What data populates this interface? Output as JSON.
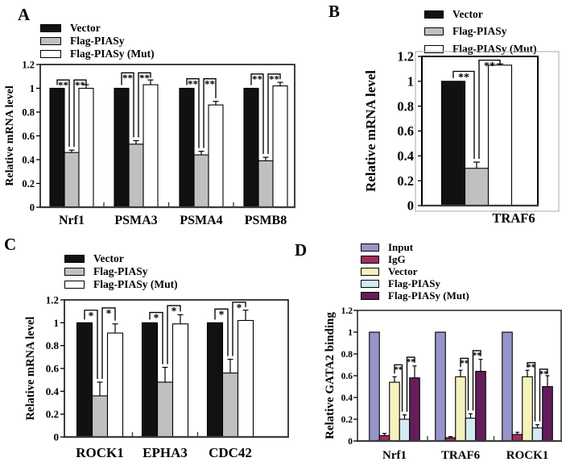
{
  "figure": {
    "background": "#ffffff",
    "accent_black": "#111111",
    "accent_gray": "#c0c0c0",
    "accent_white": "#ffffff"
  },
  "panels": [
    {
      "id": "A",
      "label": "A",
      "chart_data": {
        "type": "bar",
        "title": "",
        "xlabel": "",
        "ylabel": "Relative mRNA level",
        "ylim": [
          0,
          1.2
        ],
        "yticks": [
          0,
          0.2,
          0.4,
          0.6,
          0.8,
          1,
          1.2
        ],
        "ytick_labels": [
          "0",
          "0.2",
          "0.4",
          "0.6",
          "0.8",
          "1",
          "1.2"
        ],
        "grid": false,
        "legend_position": "top-left",
        "categories": [
          "Nrf1",
          "PSMA3",
          "PSMA4",
          "PSMB8"
        ],
        "series": [
          {
            "name": "Vector",
            "color": "#111111",
            "values": [
              1.0,
              1.0,
              1.0,
              1.0
            ],
            "errors": [
              0,
              0,
              0,
              0
            ]
          },
          {
            "name": "Flag-PIASy",
            "color": "#c0c0c0",
            "values": [
              0.46,
              0.53,
              0.44,
              0.39
            ],
            "errors": [
              0.02,
              0.03,
              0.03,
              0.03
            ]
          },
          {
            "name": "Flag-PIASy (Mut)",
            "color": "#ffffff",
            "values": [
              1.0,
              1.03,
              0.86,
              1.02
            ],
            "errors": [
              0.03,
              0.04,
              0.03,
              0.03
            ]
          }
        ],
        "significance": [
          {
            "cat": 0,
            "a": 0,
            "b": 1,
            "y": 1.07,
            "label": "**"
          },
          {
            "cat": 0,
            "a": 1,
            "b": 2,
            "y": 1.07,
            "label": "**"
          },
          {
            "cat": 1,
            "a": 0,
            "b": 1,
            "y": 1.13,
            "label": "**"
          },
          {
            "cat": 1,
            "a": 1,
            "b": 2,
            "y": 1.13,
            "label": "**"
          },
          {
            "cat": 2,
            "a": 0,
            "b": 1,
            "y": 1.08,
            "label": "**"
          },
          {
            "cat": 2,
            "a": 1,
            "b": 2,
            "y": 1.08,
            "label": "**"
          },
          {
            "cat": 3,
            "a": 0,
            "b": 1,
            "y": 1.12,
            "label": "**"
          },
          {
            "cat": 3,
            "a": 1,
            "b": 2,
            "y": 1.12,
            "label": "**"
          }
        ]
      }
    },
    {
      "id": "B",
      "label": "B",
      "chart_data": {
        "type": "bar",
        "title": "",
        "xlabel": "",
        "ylabel": "Relative mRNA level",
        "ylim": [
          0,
          1.2
        ],
        "yticks": [
          0,
          0.2,
          0.4,
          0.6,
          0.8,
          1,
          1.2
        ],
        "ytick_labels": [
          "0",
          "0.2",
          "0.4",
          "0.6",
          "0.8",
          "1",
          "1.2"
        ],
        "grid": false,
        "legend_position": "top-right",
        "categories": [
          "TRAF6"
        ],
        "series": [
          {
            "name": "Vector",
            "color": "#111111",
            "values": [
              1.0
            ],
            "errors": [
              0
            ]
          },
          {
            "name": "Flag-PIASy",
            "color": "#c0c0c0",
            "values": [
              0.3
            ],
            "errors": [
              0.05
            ]
          },
          {
            "name": "Flag-PIASy (Mut)",
            "color": "#ffffff",
            "values": [
              1.13
            ],
            "errors": [
              0.01
            ]
          }
        ],
        "significance": [
          {
            "cat": 0,
            "a": 0,
            "b": 1,
            "y": 1.08,
            "label": "**"
          },
          {
            "cat": 0,
            "a": 1,
            "b": 2,
            "y": 1.17,
            "label": "**"
          }
        ]
      }
    },
    {
      "id": "C",
      "label": "C",
      "chart_data": {
        "type": "bar",
        "title": "",
        "xlabel": "",
        "ylabel": "Relative mRNA level",
        "ylim": [
          0,
          1.2
        ],
        "yticks": [
          0,
          0.2,
          0.4,
          0.6,
          0.8,
          1,
          1.2
        ],
        "ytick_labels": [
          "0",
          "0.2",
          "0.4",
          "0.6",
          "0.8",
          "1",
          "1.2"
        ],
        "grid": false,
        "legend_position": "top-left",
        "categories": [
          "ROCK1",
          "EPHA3",
          "CDC42"
        ],
        "series": [
          {
            "name": "Vector",
            "color": "#111111",
            "values": [
              1.0,
              1.0,
              1.0
            ],
            "errors": [
              0,
              0,
              0
            ]
          },
          {
            "name": "Flag-PIASy",
            "color": "#c0c0c0",
            "values": [
              0.36,
              0.48,
              0.56
            ],
            "errors": [
              0.12,
              0.13,
              0.12
            ]
          },
          {
            "name": "Flag-PIASy (Mut)",
            "color": "#ffffff",
            "values": [
              0.91,
              0.99,
              1.02
            ],
            "errors": [
              0.08,
              0.08,
              0.09
            ]
          }
        ],
        "significance": [
          {
            "cat": 0,
            "a": 0,
            "b": 1,
            "y": 1.11,
            "label": "*"
          },
          {
            "cat": 0,
            "a": 1,
            "b": 2,
            "y": 1.13,
            "label": "*"
          },
          {
            "cat": 1,
            "a": 0,
            "b": 1,
            "y": 1.09,
            "label": "*"
          },
          {
            "cat": 1,
            "a": 1,
            "b": 2,
            "y": 1.15,
            "label": "*"
          },
          {
            "cat": 2,
            "a": 0,
            "b": 1,
            "y": 1.12,
            "label": "*"
          },
          {
            "cat": 2,
            "a": 1,
            "b": 2,
            "y": 1.18,
            "label": "*"
          }
        ]
      }
    },
    {
      "id": "D",
      "label": "D",
      "chart_data": {
        "type": "bar",
        "title": "",
        "xlabel": "",
        "ylabel": "Relative GATA2 binding",
        "ylim": [
          0,
          1.2
        ],
        "yticks": [
          0,
          0.2,
          0.4,
          0.6,
          0.8,
          1,
          1.2
        ],
        "ytick_labels": [
          "0",
          "0.2",
          "0.4",
          "0.6",
          "0.8",
          "1",
          "1.2"
        ],
        "grid": false,
        "legend_position": "top-left",
        "categories": [
          "Nrf1",
          "TRAF6",
          "ROCK1"
        ],
        "series": [
          {
            "name": "Input",
            "color": "#9694c8",
            "values": [
              1.0,
              1.0,
              1.0
            ],
            "errors": [
              0,
              0,
              0
            ]
          },
          {
            "name": "IgG",
            "color": "#a12b5e",
            "values": [
              0.05,
              0.03,
              0.06
            ],
            "errors": [
              0.02,
              0.01,
              0.02
            ]
          },
          {
            "name": "Vector",
            "color": "#f6f2bd",
            "values": [
              0.54,
              0.59,
              0.59
            ],
            "errors": [
              0.05,
              0.06,
              0.06
            ]
          },
          {
            "name": "Flag-PIASy",
            "color": "#d4e9f1",
            "values": [
              0.2,
              0.21,
              0.12
            ],
            "errors": [
              0.04,
              0.04,
              0.03
            ]
          },
          {
            "name": "Flag-PIASy (Mut)",
            "color": "#641d5b",
            "values": [
              0.58,
              0.64,
              0.5
            ],
            "errors": [
              0.11,
              0.11,
              0.1
            ]
          }
        ],
        "significance": [
          {
            "cat": 0,
            "a": 2,
            "b": 3,
            "y": 0.7,
            "label": "**"
          },
          {
            "cat": 0,
            "a": 3,
            "b": 4,
            "y": 0.77,
            "label": "**"
          },
          {
            "cat": 1,
            "a": 2,
            "b": 3,
            "y": 0.76,
            "label": "**"
          },
          {
            "cat": 1,
            "a": 3,
            "b": 4,
            "y": 0.83,
            "label": "**"
          },
          {
            "cat": 2,
            "a": 2,
            "b": 3,
            "y": 0.72,
            "label": "**"
          },
          {
            "cat": 2,
            "a": 3,
            "b": 4,
            "y": 0.66,
            "label": "**"
          }
        ]
      }
    }
  ]
}
